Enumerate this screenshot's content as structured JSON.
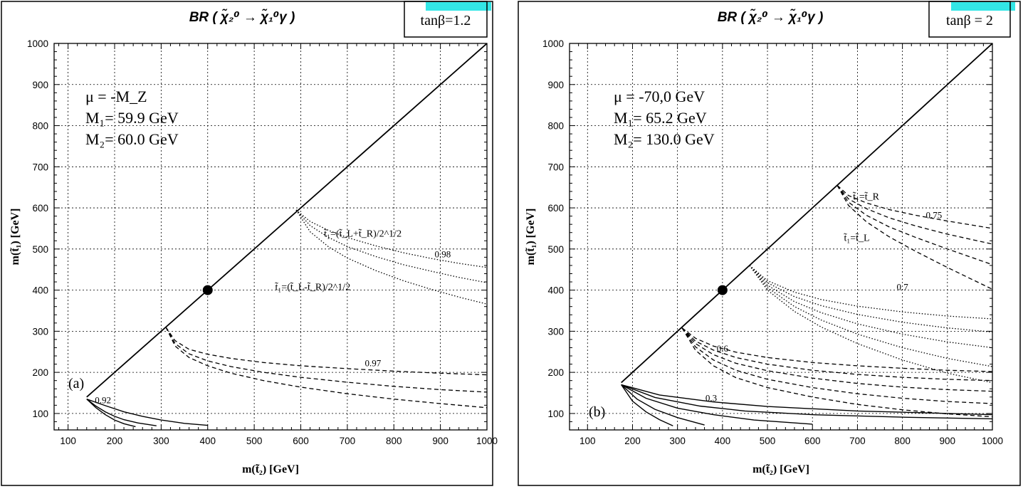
{
  "chart_data": [
    {
      "type": "line",
      "panel_label": "(a)",
      "title": "BR ( χ̃₂⁰ → χ̃₁⁰γ )",
      "xlabel": "m(t̃₂) [GeV]",
      "ylabel": "m(t̃₁) [GeV]",
      "xlim": [
        70,
        1000
      ],
      "ylim": [
        60,
        1000
      ],
      "xticks": [
        100,
        200,
        300,
        400,
        500,
        600,
        700,
        800,
        900,
        1000
      ],
      "yticks": [
        100,
        200,
        300,
        400,
        500,
        600,
        700,
        800,
        900,
        1000
      ],
      "grid": true,
      "tan_beta": "tanβ=1.2",
      "params": [
        "μ = -M_Z",
        "M₁= 59.9 GeV",
        "M₂= 60.0 GeV"
      ],
      "diagonal": [
        [
          140,
          140
        ],
        [
          1000,
          1000
        ]
      ],
      "marker": {
        "x": 400,
        "y": 400
      },
      "annotations": [
        {
          "text": "t̃₁=(t̃_L+t̃_R)/2^1/2",
          "x": 650,
          "y": 530
        },
        {
          "text": "t̃₁=(t̃_L-t̃_R)/2^1/2",
          "x": 545,
          "y": 400
        },
        {
          "text": "0.98",
          "x": 905,
          "y": 480
        },
        {
          "text": "0.97",
          "x": 755,
          "y": 215
        },
        {
          "text": "0.92",
          "x": 175,
          "y": 125
        }
      ],
      "series": [
        {
          "style": "solid",
          "group": "low",
          "x": [
            140,
            160,
            180,
            200,
            220,
            245
          ],
          "y": [
            135,
            114,
            97,
            84,
            75,
            68
          ]
        },
        {
          "style": "solid",
          "group": "low",
          "x": [
            140,
            160,
            180,
            200,
            220,
            250,
            290
          ],
          "y": [
            135,
            118,
            104,
            93,
            85,
            77,
            70
          ]
        },
        {
          "style": "solid",
          "group": "low",
          "x": [
            140,
            180,
            220,
            260,
            300,
            350,
            400
          ],
          "y": [
            135,
            119,
            104,
            93,
            84,
            76,
            71
          ]
        },
        {
          "style": "dashed",
          "group": "0.97",
          "x": [
            310,
            330,
            360,
            400,
            450,
            520,
            600,
            700,
            800,
            900,
            1000
          ],
          "y": [
            310,
            277,
            256,
            244,
            234,
            224,
            216,
            209,
            203,
            198,
            194
          ]
        },
        {
          "style": "dashed",
          "group": "0.97",
          "x": [
            310,
            330,
            360,
            400,
            450,
            520,
            600,
            700,
            800,
            900,
            1000
          ],
          "y": [
            310,
            270,
            245,
            228,
            214,
            200,
            188,
            176,
            166,
            158,
            152
          ]
        },
        {
          "style": "dashed",
          "group": "0.97",
          "x": [
            310,
            330,
            360,
            400,
            450,
            520,
            600,
            700,
            800,
            900,
            1000
          ],
          "y": [
            310,
            264,
            236,
            216,
            198,
            180,
            164,
            148,
            135,
            124,
            114
          ]
        },
        {
          "style": "dotted",
          "group": "0.98",
          "x": [
            590,
            620,
            660,
            700,
            760,
            820,
            880,
            940,
            1000
          ],
          "y": [
            595,
            567,
            545,
            528,
            508,
            491,
            477,
            465,
            455
          ]
        },
        {
          "style": "dotted",
          "group": "0.98",
          "x": [
            590,
            620,
            660,
            700,
            760,
            820,
            880,
            940,
            1000
          ],
          "y": [
            595,
            557,
            528,
            506,
            482,
            462,
            446,
            431,
            418
          ]
        },
        {
          "style": "dotted",
          "group": "0.98",
          "x": [
            590,
            620,
            660,
            700,
            760,
            820,
            880,
            940,
            1000
          ],
          "y": [
            595,
            542,
            505,
            478,
            448,
            423,
            402,
            383,
            366
          ]
        }
      ]
    },
    {
      "type": "line",
      "panel_label": "(b)",
      "title": "BR ( χ̃₂⁰ → χ̃₁⁰γ )",
      "xlabel": "m(t̃₂) [GeV]",
      "ylabel": "m(t̃₁) [GeV]",
      "xlim": [
        60,
        1000
      ],
      "ylim": [
        60,
        1000
      ],
      "xticks": [
        100,
        200,
        300,
        400,
        500,
        600,
        700,
        800,
        900,
        1000
      ],
      "yticks": [
        100,
        200,
        300,
        400,
        500,
        600,
        700,
        800,
        900,
        1000
      ],
      "grid": true,
      "tan_beta": "tanβ = 2",
      "params": [
        "μ = -70,0 GeV",
        "M₁= 65.2 GeV",
        "M₂= 130.0 GeV"
      ],
      "diagonal": [
        [
          175,
          175
        ],
        [
          1000,
          1000
        ]
      ],
      "marker": {
        "x": 400,
        "y": 400
      },
      "annotations": [
        {
          "text": "t̃₁=t̃_R",
          "x": 690,
          "y": 620
        },
        {
          "text": "t̃₁=t̃_L",
          "x": 670,
          "y": 520
        },
        {
          "text": "0.75",
          "x": 870,
          "y": 575
        },
        {
          "text": "0.7",
          "x": 800,
          "y": 400
        },
        {
          "text": "0.6",
          "x": 400,
          "y": 250
        },
        {
          "text": "0.3",
          "x": 375,
          "y": 130
        }
      ],
      "series": [
        {
          "style": "solid",
          "group": "0.3",
          "x": [
            175,
            200,
            230,
            260,
            290
          ],
          "y": [
            170,
            130,
            104,
            85,
            70
          ]
        },
        {
          "style": "solid",
          "group": "0.3",
          "x": [
            175,
            210,
            250,
            300,
            360
          ],
          "y": [
            170,
            135,
            110,
            90,
            72
          ]
        },
        {
          "style": "solid",
          "group": "0.3",
          "x": [
            175,
            230,
            300,
            380,
            470,
            600
          ],
          "y": [
            170,
            137,
            113,
            97,
            84,
            74
          ]
        },
        {
          "style": "solid",
          "group": "0.3",
          "x": [
            175,
            250,
            350,
            450,
            600,
            800,
            1000
          ],
          "y": [
            170,
            139,
            118,
            106,
            97,
            91,
            87
          ]
        },
        {
          "style": "solid",
          "group": "0.3",
          "x": [
            175,
            260,
            380,
            500,
            700,
            1000
          ],
          "y": [
            170,
            145,
            128,
            117,
            106,
            97
          ]
        },
        {
          "style": "dashed",
          "group": "0.6",
          "x": [
            310,
            340,
            380,
            430,
            500,
            600,
            700,
            800,
            900,
            1000
          ],
          "y": [
            308,
            283,
            264,
            249,
            236,
            224,
            216,
            210,
            205,
            202
          ]
        },
        {
          "style": "dashed",
          "group": "0.6",
          "x": [
            310,
            340,
            380,
            430,
            500,
            600,
            700,
            800,
            900,
            1000
          ],
          "y": [
            308,
            276,
            254,
            236,
            220,
            205,
            195,
            188,
            183,
            180
          ]
        },
        {
          "style": "dashed",
          "group": "0.6",
          "x": [
            310,
            340,
            380,
            430,
            500,
            600,
            700,
            800,
            900,
            1000
          ],
          "y": [
            308,
            270,
            243,
            222,
            204,
            186,
            173,
            164,
            158,
            154
          ]
        },
        {
          "style": "dashed",
          "group": "0.6",
          "x": [
            310,
            340,
            380,
            430,
            500,
            600,
            700,
            800,
            900,
            1000
          ],
          "y": [
            308,
            262,
            230,
            205,
            183,
            163,
            148,
            137,
            129,
            124
          ]
        },
        {
          "style": "dashed",
          "group": "0.6",
          "x": [
            310,
            340,
            380,
            430,
            500,
            600,
            700,
            800,
            900,
            1000
          ],
          "y": [
            308,
            254,
            216,
            187,
            163,
            140,
            122,
            109,
            99,
            92
          ]
        },
        {
          "style": "dotted",
          "group": "0.7",
          "x": [
            460,
            500,
            560,
            620,
            700,
            800,
            900,
            1000
          ],
          "y": [
            460,
            423,
            395,
            377,
            361,
            347,
            337,
            330
          ]
        },
        {
          "style": "dotted",
          "group": "0.7",
          "x": [
            460,
            500,
            560,
            620,
            700,
            800,
            900,
            1000
          ],
          "y": [
            460,
            418,
            384,
            362,
            341,
            322,
            308,
            298
          ]
        },
        {
          "style": "dotted",
          "group": "0.7",
          "x": [
            460,
            500,
            560,
            620,
            700,
            800,
            900,
            1000
          ],
          "y": [
            460,
            412,
            372,
            345,
            318,
            293,
            274,
            260
          ]
        },
        {
          "style": "dotted",
          "group": "0.7",
          "x": [
            460,
            500,
            560,
            620,
            700,
            800,
            900,
            1000
          ],
          "y": [
            460,
            406,
            360,
            327,
            293,
            260,
            234,
            214
          ]
        },
        {
          "style": "dotted",
          "group": "0.7",
          "x": [
            460,
            500,
            560,
            620,
            700,
            800,
            900,
            1000
          ],
          "y": [
            460,
            400,
            348,
            310,
            270,
            230,
            198,
            175
          ]
        },
        {
          "style": "dashed",
          "group": "0.75",
          "x": [
            655,
            680,
            720,
            770,
            830,
            900,
            1000
          ],
          "y": [
            655,
            630,
            612,
            596,
            582,
            568,
            550
          ]
        },
        {
          "style": "dashed",
          "group": "0.75",
          "x": [
            655,
            680,
            720,
            770,
            830,
            900,
            1000
          ],
          "y": [
            655,
            622,
            598,
            576,
            556,
            536,
            512
          ]
        },
        {
          "style": "dashed",
          "group": "0.75",
          "x": [
            655,
            680,
            720,
            770,
            830,
            900,
            1000
          ],
          "y": [
            655,
            614,
            582,
            554,
            528,
            500,
            462
          ]
        },
        {
          "style": "dashed",
          "group": "0.75",
          "x": [
            655,
            680,
            720,
            770,
            830,
            900,
            1000
          ],
          "y": [
            655,
            606,
            566,
            530,
            494,
            455,
            402
          ]
        }
      ]
    }
  ]
}
